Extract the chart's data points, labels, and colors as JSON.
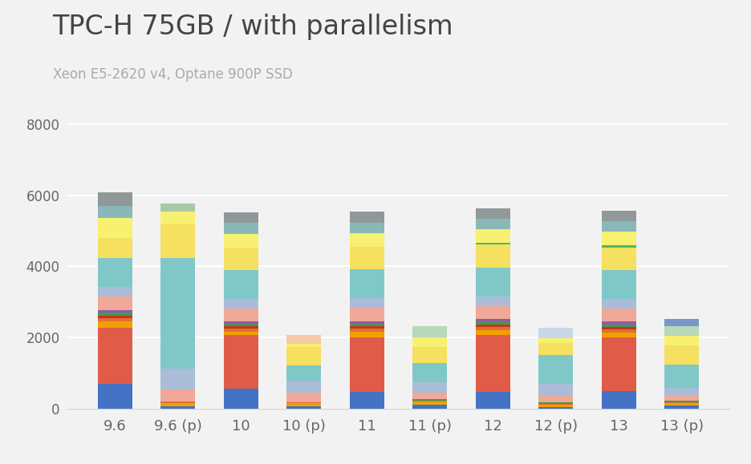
{
  "title": "TPC-H 75GB / with parallelism",
  "subtitle": "Xeon E5-2620 v4, Optane 900P SSD",
  "categories": [
    "9.6",
    "9.6 (p)",
    "10",
    "10 (p)",
    "11",
    "11 (p)",
    "12",
    "12 (p)",
    "13",
    "13 (p)"
  ],
  "ylim": [
    0,
    8500
  ],
  "yticks": [
    0,
    2000,
    4000,
    6000,
    8000
  ],
  "background_color": "#f2f2f2",
  "title_fontsize": 24,
  "subtitle_fontsize": 12,
  "segments": [
    {
      "color": "#4472c4",
      "values": [
        680,
        55,
        560,
        60,
        460,
        110,
        460,
        40,
        490,
        80
      ]
    },
    {
      "color": "#e05c48",
      "values": [
        1600,
        0,
        1500,
        0,
        1550,
        0,
        1600,
        0,
        1500,
        0
      ]
    },
    {
      "color": "#f0a000",
      "values": [
        180,
        100,
        100,
        80,
        150,
        80,
        150,
        60,
        150,
        60
      ]
    },
    {
      "color": "#e07030",
      "values": [
        80,
        30,
        80,
        30,
        80,
        30,
        80,
        30,
        80,
        30
      ]
    },
    {
      "color": "#cc3020",
      "values": [
        80,
        0,
        80,
        0,
        80,
        0,
        80,
        0,
        80,
        0
      ]
    },
    {
      "color": "#38a050",
      "values": [
        70,
        0,
        70,
        0,
        70,
        50,
        70,
        40,
        70,
        45
      ]
    },
    {
      "color": "#9955aa",
      "values": [
        70,
        0,
        70,
        0,
        70,
        0,
        70,
        0,
        70,
        0
      ]
    },
    {
      "color": "#f0a898",
      "values": [
        380,
        340,
        360,
        280,
        380,
        160,
        380,
        170,
        380,
        130
      ]
    },
    {
      "color": "#aabcd8",
      "values": [
        280,
        600,
        260,
        340,
        260,
        310,
        260,
        360,
        260,
        240
      ]
    },
    {
      "color": "#80c8c8",
      "values": [
        820,
        3100,
        820,
        420,
        820,
        540,
        820,
        800,
        820,
        640
      ]
    },
    {
      "color": "#f5e060",
      "values": [
        560,
        960,
        640,
        520,
        640,
        450,
        640,
        350,
        640,
        550
      ]
    },
    {
      "color": "#50b860",
      "values": [
        0,
        0,
        0,
        0,
        0,
        0,
        50,
        0,
        50,
        0
      ]
    },
    {
      "color": "#f8f070",
      "values": [
        560,
        360,
        380,
        80,
        380,
        260,
        380,
        130,
        380,
        260
      ]
    },
    {
      "color": "#98b8d8",
      "values": [
        0,
        0,
        0,
        0,
        0,
        0,
        0,
        0,
        0,
        0
      ]
    },
    {
      "color": "#8ab8b8",
      "values": [
        340,
        0,
        300,
        0,
        300,
        0,
        300,
        0,
        300,
        0
      ]
    },
    {
      "color": "#a8c8a8",
      "values": [
        0,
        230,
        0,
        0,
        0,
        0,
        0,
        0,
        0,
        0
      ]
    },
    {
      "color": "#f5c8a8",
      "values": [
        0,
        0,
        0,
        260,
        0,
        0,
        0,
        0,
        0,
        0
      ]
    },
    {
      "color": "#b8d8b8",
      "values": [
        0,
        0,
        0,
        0,
        0,
        320,
        0,
        0,
        0,
        280
      ]
    },
    {
      "color": "#c8d8e8",
      "values": [
        0,
        0,
        0,
        0,
        0,
        0,
        0,
        280,
        0,
        0
      ]
    },
    {
      "color": "#7898c8",
      "values": [
        0,
        0,
        0,
        0,
        0,
        0,
        0,
        0,
        0,
        200
      ]
    },
    {
      "color": "#909898",
      "values": [
        380,
        0,
        300,
        0,
        300,
        0,
        300,
        0,
        300,
        0
      ]
    }
  ]
}
